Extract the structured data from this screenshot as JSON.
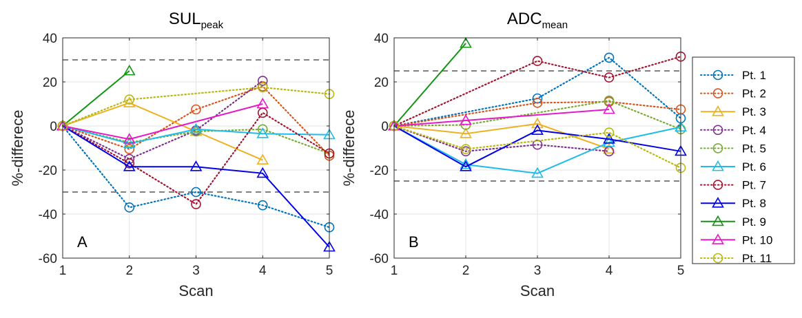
{
  "chart_data": [
    {
      "type": "line",
      "title_main": "SUL",
      "title_sub": "peak",
      "panel_label": "A",
      "xlabel": "Scan",
      "ylabel": "%-differece",
      "xlim": [
        1,
        5
      ],
      "ylim": [
        -60,
        40
      ],
      "xticks": [
        1,
        2,
        3,
        4,
        5
      ],
      "yticks": [
        -60,
        -40,
        -20,
        0,
        20,
        40
      ],
      "grid": true,
      "reference_lines": [
        30,
        -30
      ],
      "series": [
        {
          "name": "Pt. 1",
          "marker": "circle",
          "style": "dotted",
          "color": "#0072BD",
          "x": [
            1,
            2,
            3,
            4,
            5
          ],
          "y": [
            0,
            -37,
            -30,
            -36,
            -46
          ]
        },
        {
          "name": "Pt. 2",
          "marker": "circle",
          "style": "dotted",
          "color": "#D95319",
          "x": [
            1,
            2,
            3,
            4,
            5
          ],
          "y": [
            0,
            -10.5,
            7.5,
            18,
            -13.5
          ]
        },
        {
          "name": "Pt. 3",
          "marker": "triangle",
          "style": "solid",
          "color": "#EDB120",
          "x": [
            1,
            2,
            3,
            4
          ],
          "y": [
            0,
            10.5,
            -2.5,
            -15.5
          ]
        },
        {
          "name": "Pt. 4",
          "marker": "circle",
          "style": "dotted",
          "color": "#7E2F8E",
          "x": [
            1,
            2,
            3,
            4
          ],
          "y": [
            0,
            -15,
            -2,
            20.5
          ]
        },
        {
          "name": "Pt. 5",
          "marker": "circle",
          "style": "dotted",
          "color": "#77AC30",
          "x": [
            1,
            2,
            3,
            4,
            5
          ],
          "y": [
            0,
            -7.5,
            -2.5,
            -1.5,
            -12.5
          ]
        },
        {
          "name": "Pt. 6",
          "marker": "triangle",
          "style": "solid",
          "color": "#1EBCEB",
          "x": [
            1,
            2,
            3,
            4,
            5
          ],
          "y": [
            0,
            -8,
            -1.5,
            -3.5,
            -4
          ]
        },
        {
          "name": "Pt. 7",
          "marker": "circle",
          "style": "dotted",
          "color": "#A2142F",
          "x": [
            1,
            2,
            3,
            4,
            5
          ],
          "y": [
            0,
            -17,
            -35.5,
            6,
            -12.5
          ]
        },
        {
          "name": "Pt. 8",
          "marker": "triangle",
          "style": "solid",
          "color": "#0000E6",
          "x": [
            1,
            2,
            3,
            4,
            5
          ],
          "y": [
            0,
            -18.5,
            -18.5,
            -21.5,
            -55
          ]
        },
        {
          "name": "Pt. 9",
          "marker": "triangle",
          "style": "solid",
          "color": "#139413",
          "x": [
            1,
            2
          ],
          "y": [
            0,
            25
          ]
        },
        {
          "name": "Pt. 10",
          "marker": "triangle",
          "style": "solid",
          "color": "#E619C8",
          "x": [
            1,
            2,
            4
          ],
          "y": [
            0,
            -6,
            10
          ]
        },
        {
          "name": "Pt. 11",
          "marker": "circle",
          "style": "dotted",
          "color": "#B8B80F",
          "x": [
            1,
            2,
            4,
            5
          ],
          "y": [
            0,
            12,
            17.5,
            14.5
          ]
        }
      ]
    },
    {
      "type": "line",
      "title_main": "ADC",
      "title_sub": "mean",
      "panel_label": "B",
      "xlabel": "Scan",
      "ylabel": "%-differece",
      "xlim": [
        1,
        5
      ],
      "ylim": [
        -60,
        40
      ],
      "xticks": [
        1,
        2,
        3,
        4,
        5
      ],
      "yticks": [
        -60,
        -40,
        -20,
        0,
        20,
        40
      ],
      "grid": true,
      "reference_lines": [
        25,
        -25
      ],
      "series": [
        {
          "name": "Pt. 1",
          "marker": "circle",
          "style": "dotted",
          "color": "#0072BD",
          "x": [
            1,
            3,
            4,
            5
          ],
          "y": [
            0,
            12.5,
            31,
            3.5
          ]
        },
        {
          "name": "Pt. 2",
          "marker": "circle",
          "style": "dotted",
          "color": "#D95319",
          "x": [
            1,
            3,
            4,
            5
          ],
          "y": [
            0,
            10.5,
            11,
            7.5
          ]
        },
        {
          "name": "Pt. 3",
          "marker": "triangle",
          "style": "solid",
          "color": "#EDB120",
          "x": [
            1,
            2,
            3,
            4
          ],
          "y": [
            0,
            -3.5,
            1,
            -10.5
          ]
        },
        {
          "name": "Pt. 4",
          "marker": "circle",
          "style": "dotted",
          "color": "#7E2F8E",
          "x": [
            1,
            2,
            3,
            4
          ],
          "y": [
            0,
            -11.5,
            -8.5,
            -11.5
          ]
        },
        {
          "name": "Pt. 5",
          "marker": "circle",
          "style": "dotted",
          "color": "#77AC30",
          "x": [
            1,
            2,
            4,
            5
          ],
          "y": [
            0,
            0.5,
            11.5,
            -1.5
          ]
        },
        {
          "name": "Pt. 6",
          "marker": "triangle",
          "style": "solid",
          "color": "#1EBCEB",
          "x": [
            1,
            2,
            3,
            4,
            5
          ],
          "y": [
            0,
            -17.5,
            -21.5,
            -7.5,
            -0.5
          ]
        },
        {
          "name": "Pt. 7",
          "marker": "circle",
          "style": "dotted",
          "color": "#A2142F",
          "x": [
            1,
            3,
            4,
            5
          ],
          "y": [
            0,
            29.5,
            22,
            31.5
          ]
        },
        {
          "name": "Pt. 8",
          "marker": "triangle",
          "style": "solid",
          "color": "#0000E6",
          "x": [
            1,
            2,
            3,
            4,
            5
          ],
          "y": [
            0,
            -18.5,
            -2,
            -6,
            -11.5
          ]
        },
        {
          "name": "Pt. 9",
          "marker": "triangle",
          "style": "solid",
          "color": "#139413",
          "x": [
            1,
            2
          ],
          "y": [
            0,
            37.5
          ]
        },
        {
          "name": "Pt. 10",
          "marker": "triangle",
          "style": "solid",
          "color": "#E619C8",
          "x": [
            1,
            2,
            4
          ],
          "y": [
            0,
            2.5,
            7.5
          ]
        },
        {
          "name": "Pt. 11",
          "marker": "circle",
          "style": "dotted",
          "color": "#B8B80F",
          "x": [
            1,
            2,
            4,
            5
          ],
          "y": [
            0,
            -10.5,
            -3,
            -19
          ]
        }
      ]
    }
  ],
  "legend": {
    "placement": "right",
    "entries": [
      "Pt. 1",
      "Pt. 2",
      "Pt. 3",
      "Pt. 4",
      "Pt. 5",
      "Pt. 6",
      "Pt. 7",
      "Pt. 8",
      "Pt. 9",
      "Pt. 10",
      "Pt. 11"
    ]
  }
}
